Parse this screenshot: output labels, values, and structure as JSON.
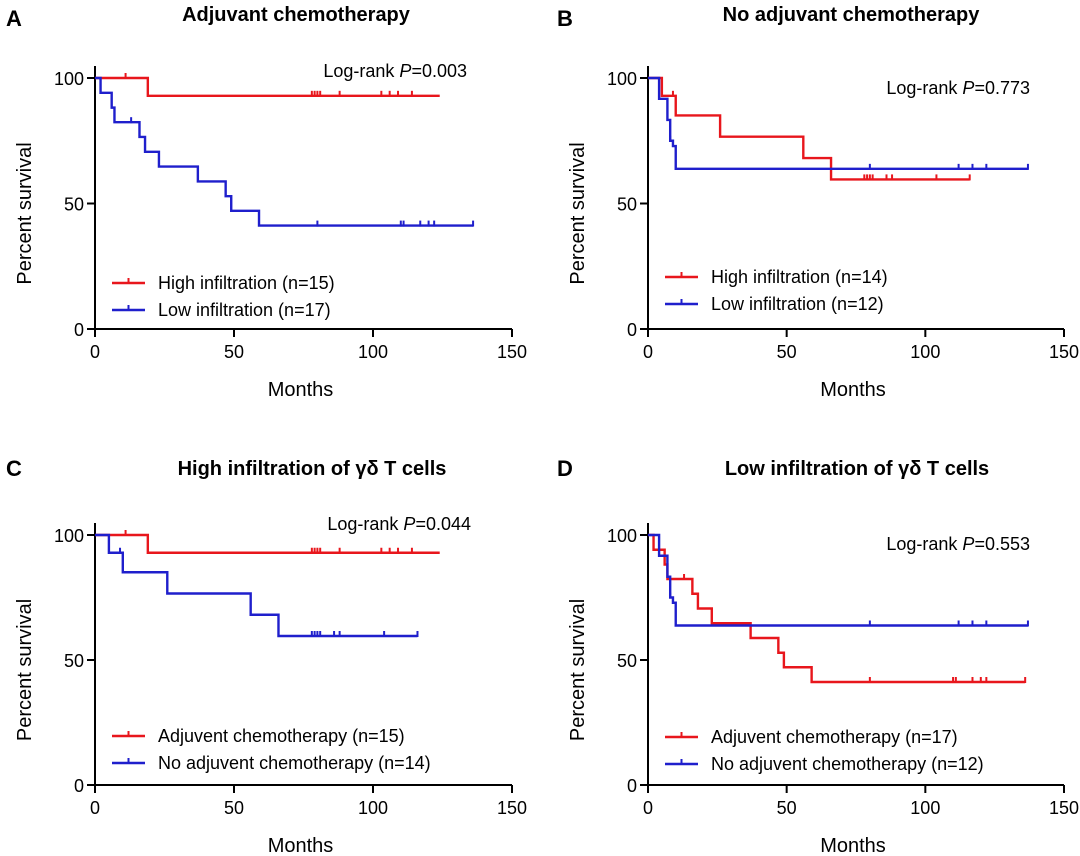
{
  "colors": {
    "red": "#e8161c",
    "blue": "#1f1fcc"
  },
  "chart_data": [
    {
      "panel": "A",
      "type": "line",
      "subtype": "kaplan-meier",
      "title": "Adjuvant chemotherapy",
      "xlabel": "Months",
      "ylabel": "Percent survival",
      "xlim": [
        0,
        150
      ],
      "ylim": [
        0,
        100
      ],
      "xticks": [
        0,
        50,
        100,
        150
      ],
      "yticks": [
        0,
        50,
        100
      ],
      "annotation": {
        "prefix": "Log-rank ",
        "p": "P",
        "suffix": "=0.003"
      },
      "legend_position": "bottom-left",
      "series": [
        {
          "name": "High infiltration (n=15)",
          "color": "red",
          "steps": [
            [
              0,
              100
            ],
            [
              19,
              92.9
            ],
            [
              124,
              92.9
            ]
          ],
          "censored": [
            11,
            78,
            79,
            80,
            81,
            88,
            103,
            106,
            109,
            114
          ]
        },
        {
          "name": "Low infiltration (n=17)",
          "color": "blue",
          "steps": [
            [
              0,
              100
            ],
            [
              2,
              94.1
            ],
            [
              6,
              88.2
            ],
            [
              7,
              82.4
            ],
            [
              16,
              76.5
            ],
            [
              18,
              70.6
            ],
            [
              23,
              64.7
            ],
            [
              37,
              58.8
            ],
            [
              47,
              52.9
            ],
            [
              49,
              47.1
            ],
            [
              59,
              41.2
            ],
            [
              136,
              41.2
            ]
          ],
          "censored": [
            13,
            80,
            110,
            111,
            117,
            120,
            122,
            136
          ]
        }
      ]
    },
    {
      "panel": "B",
      "type": "line",
      "subtype": "kaplan-meier",
      "title": "No adjuvant chemotherapy",
      "xlabel": "Months",
      "ylabel": "Percent survival",
      "xlim": [
        0,
        150
      ],
      "ylim": [
        0,
        100
      ],
      "xticks": [
        0,
        50,
        100,
        150
      ],
      "yticks": [
        0,
        50,
        100
      ],
      "annotation": {
        "prefix": "Log-rank ",
        "p": "P",
        "suffix": "=0.773"
      },
      "legend_position": "bottom-left",
      "series": [
        {
          "name": "High infiltration (n=14)",
          "color": "red",
          "steps": [
            [
              0,
              100
            ],
            [
              5,
              92.9
            ],
            [
              10,
              85.1
            ],
            [
              26,
              76.6
            ],
            [
              56,
              68.1
            ],
            [
              66,
              59.6
            ],
            [
              116,
              59.6
            ]
          ],
          "censored": [
            9,
            78,
            79,
            80,
            81,
            86,
            88,
            104,
            116
          ]
        },
        {
          "name": "Low infiltration (n=12)",
          "color": "blue",
          "steps": [
            [
              0,
              100
            ],
            [
              4,
              91.7
            ],
            [
              7,
              83.3
            ],
            [
              8,
              75
            ],
            [
              9,
              72.9
            ],
            [
              10,
              63.8
            ],
            [
              137,
              63.8
            ]
          ],
          "censored": [
            8,
            80,
            112,
            117,
            122,
            137
          ]
        }
      ]
    },
    {
      "panel": "C",
      "type": "line",
      "subtype": "kaplan-meier",
      "title": "High infiltration of γδ T cells",
      "xlabel": "Months",
      "ylabel": "Percent survival",
      "xlim": [
        0,
        150
      ],
      "ylim": [
        0,
        100
      ],
      "xticks": [
        0,
        50,
        100,
        150
      ],
      "yticks": [
        0,
        50,
        100
      ],
      "annotation": {
        "prefix": "Log-rank ",
        "p": "P",
        "suffix": "=0.044"
      },
      "legend_position": "bottom-left",
      "series": [
        {
          "name": "Adjuvent chemotherapy (n=15)",
          "color": "red",
          "steps": [
            [
              0,
              100
            ],
            [
              19,
              92.9
            ],
            [
              124,
              92.9
            ]
          ],
          "censored": [
            11,
            78,
            79,
            80,
            81,
            88,
            103,
            106,
            109,
            114
          ]
        },
        {
          "name": "No adjuvent chemotherapy (n=14)",
          "color": "blue",
          "steps": [
            [
              0,
              100
            ],
            [
              5,
              92.9
            ],
            [
              10,
              85.1
            ],
            [
              26,
              76.6
            ],
            [
              56,
              68.1
            ],
            [
              66,
              59.6
            ],
            [
              116,
              59.6
            ]
          ],
          "censored": [
            9,
            78,
            79,
            80,
            81,
            86,
            88,
            104,
            116
          ]
        }
      ]
    },
    {
      "panel": "D",
      "type": "line",
      "subtype": "kaplan-meier",
      "title": "Low infiltration of γδ T cells",
      "xlabel": "Months",
      "ylabel": "Percent survival",
      "xlim": [
        0,
        150
      ],
      "ylim": [
        0,
        100
      ],
      "xticks": [
        0,
        50,
        100,
        150
      ],
      "yticks": [
        0,
        50,
        100
      ],
      "annotation": {
        "prefix": "Log-rank ",
        "p": "P",
        "suffix": "=0.553"
      },
      "legend_position": "bottom-left",
      "series": [
        {
          "name": "Adjuvent chemotherapy (n=17)",
          "color": "red",
          "steps": [
            [
              0,
              100
            ],
            [
              2,
              94.1
            ],
            [
              6,
              88.2
            ],
            [
              7,
              82.4
            ],
            [
              16,
              76.5
            ],
            [
              18,
              70.6
            ],
            [
              23,
              64.7
            ],
            [
              37,
              58.8
            ],
            [
              47,
              52.9
            ],
            [
              49,
              47.1
            ],
            [
              59,
              41.2
            ],
            [
              136,
              41.2
            ]
          ],
          "censored": [
            13,
            80,
            110,
            111,
            117,
            120,
            122,
            136
          ]
        },
        {
          "name": "No adjuvent chemotherapy (n=12)",
          "color": "blue",
          "steps": [
            [
              0,
              100
            ],
            [
              4,
              91.7
            ],
            [
              7,
              83.3
            ],
            [
              8,
              75
            ],
            [
              9,
              72.9
            ],
            [
              10,
              63.8
            ],
            [
              137,
              63.8
            ]
          ],
          "censored": [
            8,
            80,
            112,
            117,
            122,
            137
          ]
        }
      ]
    }
  ]
}
